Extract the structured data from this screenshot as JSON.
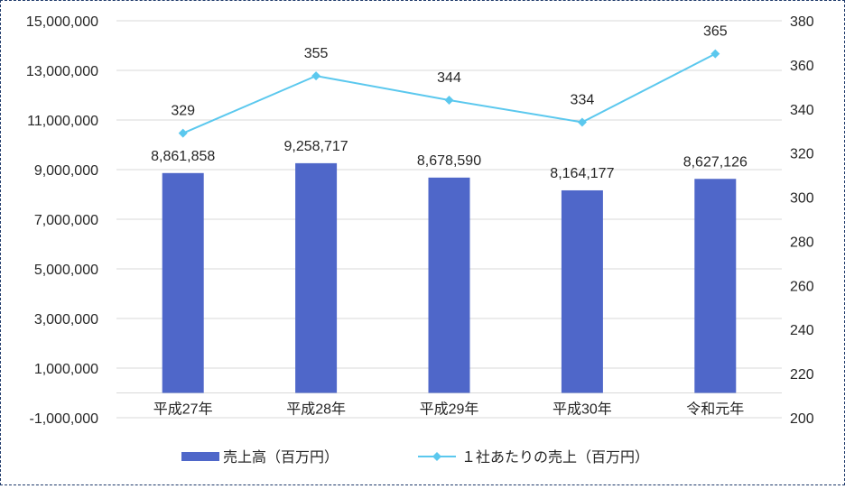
{
  "chart_data": {
    "type": "bar",
    "categories": [
      "平成27年",
      "平成28年",
      "平成29年",
      "平成30年",
      "令和元年"
    ],
    "series": [
      {
        "name": "売上高（百万円）",
        "type": "bar",
        "axis": "left",
        "values": [
          8861858,
          9258717,
          8678590,
          8164177,
          8627126
        ],
        "labels": [
          "8,861,858",
          "9,258,717",
          "8,678,590",
          "8,164,177",
          "8,627,126"
        ],
        "color": "#4f67c9"
      },
      {
        "name": "１社あたりの売上（百万円）",
        "type": "line",
        "axis": "right",
        "values": [
          329,
          355,
          344,
          334,
          365
        ],
        "labels": [
          "329",
          "355",
          "344",
          "334",
          "365"
        ],
        "color": "#5bc8ee"
      }
    ],
    "y_left": {
      "ylim": [
        -1000000,
        15000000
      ],
      "ticks": [
        "-1,000,000",
        "1,000,000",
        "3,000,000",
        "5,000,000",
        "7,000,000",
        "9,000,000",
        "11,000,000",
        "13,000,000",
        "15,000,000"
      ]
    },
    "y_right": {
      "ylim": [
        200,
        380
      ],
      "ticks": [
        "200",
        "220",
        "240",
        "260",
        "280",
        "300",
        "320",
        "340",
        "360",
        "380"
      ]
    },
    "grid": true,
    "legend": "bottom"
  }
}
